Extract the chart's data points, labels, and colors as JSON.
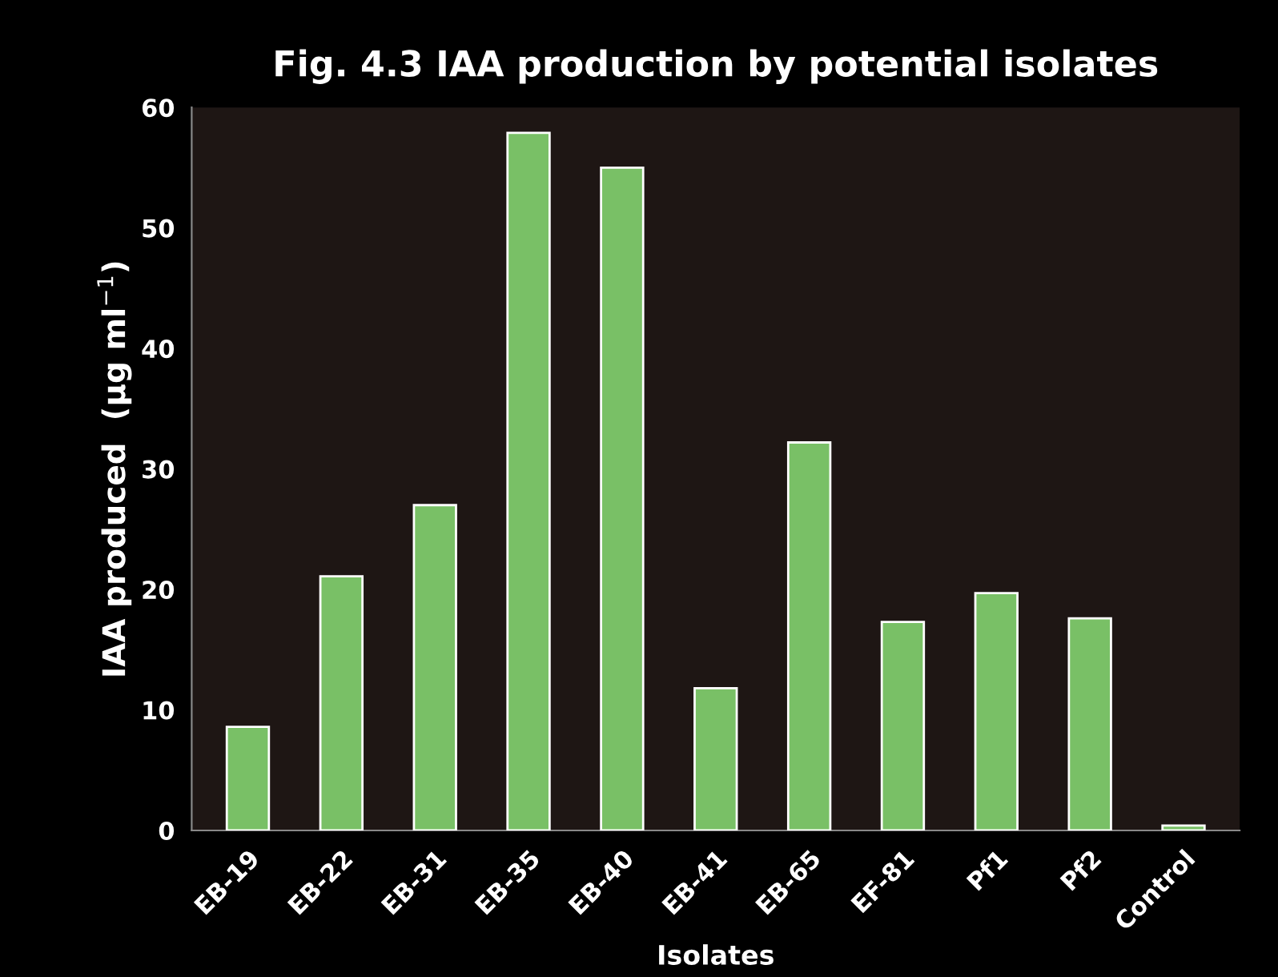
{
  "chart_data": {
    "type": "bar",
    "title": "Fig. 4.3 IAA production by potential isolates",
    "xlabel": "Isolates",
    "ylabel": "IAA produced  (µg ml$^{−1}$)",
    "categories": [
      "EB-19",
      "EB-22",
      "EB-31",
      "EB-35",
      "EB-40",
      "EB-41",
      "EB-65",
      "EF-81",
      "Pf1",
      "Pf2",
      "Control"
    ],
    "values": [
      8.6,
      21.1,
      27.0,
      57.9,
      55.0,
      11.8,
      32.2,
      17.3,
      19.7,
      17.6,
      0.4
    ],
    "color": "#79c066",
    "ylim": [
      0,
      60
    ],
    "yticks": [
      0,
      10,
      20,
      30,
      40,
      50,
      60
    ],
    "grid": false,
    "legend": false
  }
}
